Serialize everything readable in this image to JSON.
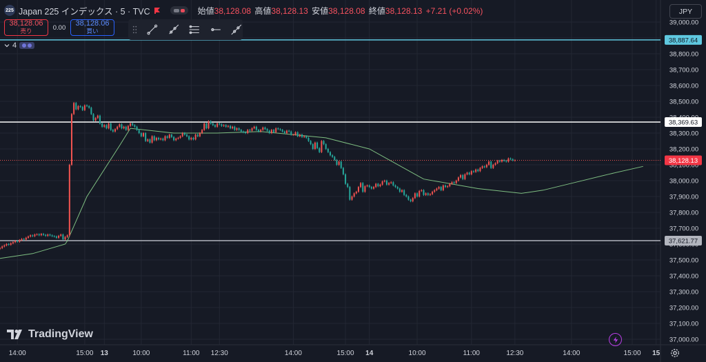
{
  "header": {
    "logo_text": "225",
    "title": "Japan 225 インデックス · 5 · TVC",
    "ohlc": [
      {
        "label": "始値",
        "value": "38,128.08"
      },
      {
        "label": "高値",
        "value": "38,128.13"
      },
      {
        "label": "安値",
        "value": "38,128.08"
      },
      {
        "label": "終値",
        "value": "38,128.13"
      }
    ],
    "change": "+7.21 (+0.02%)"
  },
  "trade": {
    "sell_price": "38,128.06",
    "sell_label": "売り",
    "spread": "0.00",
    "buy_price": "38,128.06",
    "buy_label": "買い"
  },
  "indicators": {
    "count": "4"
  },
  "currency": "JPY",
  "brand": "TradingView",
  "colors": {
    "bg": "#161a25",
    "up": "#ef5350",
    "down": "#26a69a",
    "ma": "#7fbf82",
    "hline_cyan": "#5fc8e0",
    "hline_white": "#ffffff",
    "hline_gray": "#b2b5be"
  },
  "chart_data": {
    "type": "candlestick",
    "y_axis": {
      "min": 37000,
      "max": 39000,
      "ticks": [
        "39,000.00",
        "38,900.00",
        "38,800.00",
        "38,700.00",
        "38,600.00",
        "38,500.00",
        "38,400.00",
        "38,300.00",
        "38,200.00",
        "38,100.00",
        "38,000.00",
        "37,900.00",
        "37,800.00",
        "37,700.00",
        "37,600.00",
        "37,500.00",
        "37,400.00",
        "37,300.00",
        "37,200.00",
        "37,100.00",
        "37,000.00"
      ],
      "tick_values": [
        39000,
        38900,
        38800,
        38700,
        38600,
        38500,
        38400,
        38300,
        38200,
        38100,
        38000,
        37900,
        37800,
        37700,
        37600,
        37500,
        37400,
        37300,
        37200,
        37100,
        37000
      ]
    },
    "x_axis": {
      "labels": [
        "14:00",
        "15:00",
        "13",
        "10:00",
        "11:00",
        "12:30",
        "14:00",
        "15:00",
        "14",
        "10:00",
        "11:00",
        "12:30",
        "14:00",
        "15:00",
        "15"
      ],
      "bold": [
        false,
        false,
        true,
        false,
        false,
        false,
        false,
        false,
        true,
        false,
        false,
        false,
        false,
        false,
        true
      ],
      "positions": [
        8,
        39,
        48,
        65,
        88,
        101,
        135,
        159,
        170,
        192,
        217,
        237,
        263,
        291,
        302
      ]
    },
    "x_range": [
      0,
      304
    ],
    "hlines": [
      {
        "value": 38887.64,
        "label": "38,887.64",
        "color": "#5fc8e0"
      },
      {
        "value": 38369.63,
        "label": "38,369.63",
        "color": "#ffffff"
      },
      {
        "value": 37621.77,
        "label": "37,621.77",
        "color": "#b2b5be"
      }
    ],
    "last_price": {
      "value": 38128.13,
      "label": "38,128.13"
    },
    "closes": [
      37575,
      37585,
      37592,
      37600,
      37596,
      37605,
      37612,
      37620,
      37615,
      37625,
      37632,
      37628,
      37640,
      37648,
      37655,
      37650,
      37660,
      37662,
      37656,
      37664,
      37658,
      37652,
      37660,
      37655,
      37650,
      37648,
      37640,
      37652,
      37660,
      37630,
      37645,
      37655,
      38100,
      38420,
      38490,
      38450,
      38470,
      38465,
      38445,
      38475,
      38470,
      38460,
      38420,
      38380,
      38395,
      38410,
      38360,
      38340,
      38350,
      38330,
      38360,
      38320,
      38310,
      38325,
      38340,
      38355,
      38330,
      38340,
      38320,
      38345,
      38360,
      38350,
      38340,
      38320,
      38300,
      38280,
      38300,
      38250,
      38260,
      38240,
      38280,
      38255,
      38270,
      38260,
      38265,
      38255,
      38280,
      38270,
      38290,
      38275,
      38255,
      38265,
      38270,
      38280,
      38300,
      38290,
      38280,
      38260,
      38270,
      38260,
      38290,
      38280,
      38300,
      38320,
      38360,
      38330,
      38375,
      38360,
      38350,
      38340,
      38360,
      38355,
      38345,
      38350,
      38340,
      38345,
      38330,
      38340,
      38320,
      38330,
      38320,
      38310,
      38305,
      38300,
      38320,
      38315,
      38330,
      38340,
      38320,
      38310,
      38320,
      38335,
      38325,
      38315,
      38300,
      38320,
      38305,
      38330,
      38325,
      38320,
      38310,
      38300,
      38315,
      38310,
      38290,
      38290,
      38305,
      38280,
      38290,
      38275,
      38280,
      38270,
      38250,
      38230,
      38200,
      38240,
      38205,
      38180,
      38250,
      38230,
      38200,
      38180,
      38160,
      38150,
      38130,
      38100,
      38120,
      38080,
      38040,
      37980,
      37960,
      37880,
      37900,
      37920,
      37930,
      37960,
      37985,
      37930,
      37965,
      37970,
      37960,
      37950,
      37960,
      37980,
      37965,
      37975,
      37995,
      38000,
      37975,
      37985,
      37990,
      37970,
      37960,
      37950,
      37930,
      37940,
      37910,
      37900,
      37880,
      37870,
      37890,
      37920,
      37900,
      37935,
      37940,
      37910,
      37920,
      37910,
      37915,
      37930,
      37940,
      37950,
      37960,
      37940,
      37970,
      37960,
      37965,
      37980,
      37990,
      37985,
      38000,
      38020,
      38035,
      38010,
      38040,
      38050,
      38040,
      38060,
      38055,
      38070,
      38060,
      38080,
      38090,
      38085,
      38100,
      38120,
      38080,
      38100,
      38110,
      38125,
      38120,
      38130,
      38125,
      38120,
      38140,
      38135,
      38128,
      38128.13
    ],
    "ma": [
      [
        0,
        37510
      ],
      [
        15,
        37540
      ],
      [
        30,
        37600
      ],
      [
        31,
        37620
      ],
      [
        40,
        37900
      ],
      [
        55,
        38220
      ],
      [
        60,
        38330
      ],
      [
        80,
        38300
      ],
      [
        100,
        38300
      ],
      [
        120,
        38310
      ],
      [
        150,
        38270
      ],
      [
        170,
        38200
      ],
      [
        195,
        38010
      ],
      [
        220,
        37950
      ],
      [
        240,
        37920
      ],
      [
        250,
        37940
      ],
      [
        265,
        37990
      ],
      [
        280,
        38040
      ],
      [
        296,
        38090
      ]
    ]
  }
}
